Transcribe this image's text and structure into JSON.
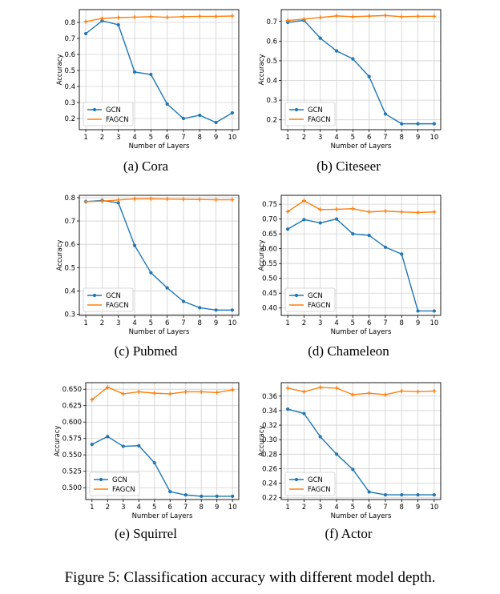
{
  "figure_caption": "Figure 5: Classification accuracy with different model depth.",
  "colors": {
    "gcn": "#1f77b4",
    "fagcn": "#ff7f0e",
    "grid": "#d0d0d0"
  },
  "chart_data": [
    {
      "type": "line",
      "caption": "(a) Cora",
      "xlabel": "Number of Layers",
      "ylabel": "Accuracy",
      "x": [
        1,
        2,
        3,
        4,
        5,
        6,
        7,
        8,
        9,
        10
      ],
      "xlim": [
        0.6,
        10.4
      ],
      "ylim": [
        0.13,
        0.88
      ],
      "yticks": [
        0.2,
        0.3,
        0.4,
        0.5,
        0.6,
        0.7,
        0.8
      ],
      "ytick_labels": [
        "0.2",
        "0.3",
        "0.4",
        "0.5",
        "0.6",
        "0.7",
        "0.8"
      ],
      "legend": "lower-left",
      "grid": true,
      "series": [
        {
          "name": "GCN",
          "values": [
            0.73,
            0.81,
            0.785,
            0.49,
            0.475,
            0.29,
            0.2,
            0.22,
            0.175,
            0.235
          ]
        },
        {
          "name": "FAGCN",
          "values": [
            0.805,
            0.825,
            0.83,
            0.833,
            0.836,
            0.832,
            0.836,
            0.838,
            0.838,
            0.84
          ]
        }
      ]
    },
    {
      "type": "line",
      "caption": "(b) Citeseer",
      "xlabel": "Number of Layers",
      "ylabel": "Accuracy",
      "x": [
        1,
        2,
        3,
        4,
        5,
        6,
        7,
        8,
        9,
        10
      ],
      "xlim": [
        0.6,
        10.4
      ],
      "ylim": [
        0.15,
        0.76
      ],
      "yticks": [
        0.2,
        0.3,
        0.4,
        0.5,
        0.6,
        0.7
      ],
      "ytick_labels": [
        "0.2",
        "0.3",
        "0.4",
        "0.5",
        "0.6",
        "0.7"
      ],
      "legend": "lower-left",
      "grid": true,
      "series": [
        {
          "name": "GCN",
          "values": [
            0.695,
            0.705,
            0.615,
            0.55,
            0.51,
            0.42,
            0.23,
            0.18,
            0.18,
            0.18
          ]
        },
        {
          "name": "FAGCN",
          "values": [
            0.705,
            0.712,
            0.72,
            0.728,
            0.724,
            0.727,
            0.73,
            0.724,
            0.726,
            0.726
          ]
        }
      ]
    },
    {
      "type": "line",
      "caption": "(c) Pubmed",
      "xlabel": "Number of Layers",
      "ylabel": "Accuracy",
      "x": [
        1,
        2,
        3,
        4,
        5,
        6,
        7,
        8,
        9,
        10
      ],
      "xlim": [
        0.6,
        10.4
      ],
      "ylim": [
        0.295,
        0.81
      ],
      "yticks": [
        0.3,
        0.4,
        0.5,
        0.6,
        0.7,
        0.8
      ],
      "ytick_labels": [
        "0.3",
        "0.4",
        "0.5",
        "0.6",
        "0.7",
        "0.8"
      ],
      "legend": "lower-left",
      "grid": true,
      "series": [
        {
          "name": "GCN",
          "values": [
            0.783,
            0.788,
            0.778,
            0.595,
            0.478,
            0.413,
            0.355,
            0.328,
            0.318,
            0.318
          ]
        },
        {
          "name": "FAGCN",
          "values": [
            0.783,
            0.785,
            0.79,
            0.795,
            0.795,
            0.794,
            0.793,
            0.792,
            0.791,
            0.791
          ]
        }
      ]
    },
    {
      "type": "line",
      "caption": "(d) Chameleon",
      "xlabel": "Number of Layers",
      "ylabel": "Accuracy",
      "x": [
        1,
        2,
        3,
        4,
        5,
        6,
        7,
        8,
        9,
        10
      ],
      "xlim": [
        0.6,
        10.4
      ],
      "ylim": [
        0.375,
        0.78
      ],
      "yticks": [
        0.4,
        0.45,
        0.5,
        0.55,
        0.6,
        0.65,
        0.7,
        0.75
      ],
      "ytick_labels": [
        "0.40",
        "0.45",
        "0.50",
        "0.55",
        "0.60",
        "0.65",
        "0.70",
        "0.75"
      ],
      "legend": "lower-left",
      "grid": true,
      "series": [
        {
          "name": "GCN",
          "values": [
            0.666,
            0.698,
            0.687,
            0.7,
            0.65,
            0.645,
            0.605,
            0.582,
            0.39,
            0.39
          ]
        },
        {
          "name": "FAGCN",
          "values": [
            0.725,
            0.762,
            0.732,
            0.733,
            0.735,
            0.724,
            0.727,
            0.724,
            0.722,
            0.724
          ]
        }
      ]
    },
    {
      "type": "line",
      "caption": "(e) Squirrel",
      "xlabel": "Number of Layers",
      "ylabel": "Accuracy",
      "x": [
        1,
        2,
        3,
        4,
        5,
        6,
        7,
        8,
        9,
        10
      ],
      "xlim": [
        0.6,
        10.4
      ],
      "ylim": [
        0.482,
        0.66
      ],
      "yticks": [
        0.5,
        0.525,
        0.55,
        0.575,
        0.6,
        0.625,
        0.65
      ],
      "ytick_labels": [
        "0.500",
        "0.525",
        "0.550",
        "0.575",
        "0.600",
        "0.625",
        "0.650"
      ],
      "legend": "lower-left",
      "grid": true,
      "series": [
        {
          "name": "GCN",
          "values": [
            0.566,
            0.578,
            0.563,
            0.564,
            0.538,
            0.494,
            0.489,
            0.487,
            0.487,
            0.487
          ]
        },
        {
          "name": "FAGCN",
          "values": [
            0.634,
            0.653,
            0.643,
            0.646,
            0.644,
            0.643,
            0.646,
            0.646,
            0.645,
            0.649
          ]
        }
      ]
    },
    {
      "type": "line",
      "caption": "(f) Actor",
      "xlabel": "Number of Layers",
      "ylabel": "Accuracy",
      "x": [
        1,
        2,
        3,
        4,
        5,
        6,
        7,
        8,
        9,
        10
      ],
      "xlim": [
        0.6,
        10.4
      ],
      "ylim": [
        0.2175,
        0.3785
      ],
      "yticks": [
        0.22,
        0.24,
        0.26,
        0.28,
        0.3,
        0.32,
        0.34,
        0.36
      ],
      "ytick_labels": [
        "0.22",
        "0.24",
        "0.26",
        "0.28",
        "0.30",
        "0.32",
        "0.34",
        "0.36"
      ],
      "legend": "lower-left",
      "grid": true,
      "series": [
        {
          "name": "GCN",
          "values": [
            0.342,
            0.336,
            0.304,
            0.28,
            0.259,
            0.228,
            0.224,
            0.224,
            0.224,
            0.224
          ]
        },
        {
          "name": "FAGCN",
          "values": [
            0.371,
            0.366,
            0.372,
            0.371,
            0.362,
            0.364,
            0.362,
            0.367,
            0.366,
            0.367
          ]
        }
      ]
    }
  ]
}
